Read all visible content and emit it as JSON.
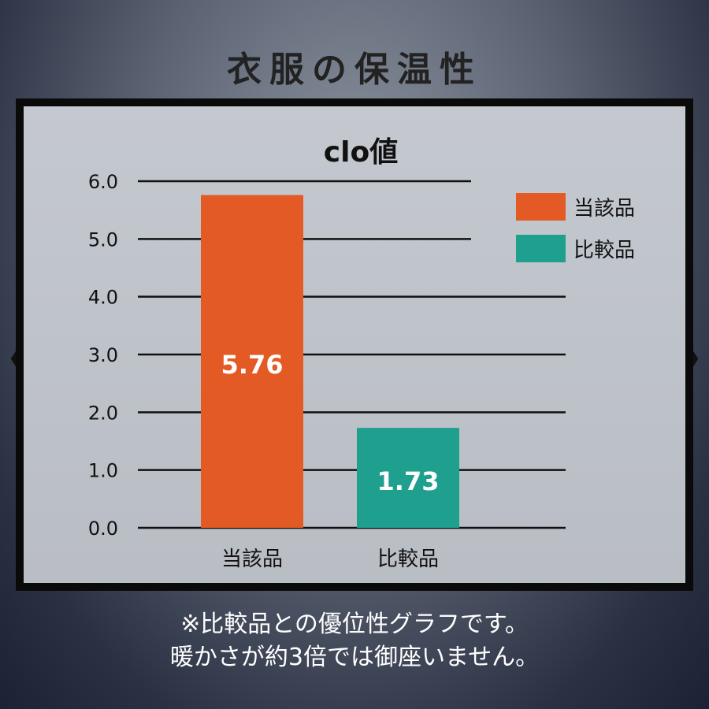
{
  "page_title": "衣服の保温性",
  "note_lines": [
    "※比較品との優位性グラフです。",
    "暖かさが約3倍では御座いません。"
  ],
  "nav": {
    "prev": "❮",
    "next": "❯"
  },
  "chart_data": {
    "type": "bar",
    "title": "clo値",
    "categories": [
      "当該品",
      "比較品"
    ],
    "values": [
      5.76,
      1.73
    ],
    "data_labels": [
      "5.76",
      "1.73"
    ],
    "colors": [
      "#e35a24",
      "#1fa08f"
    ],
    "ylim": [
      0,
      6
    ],
    "yticks": [
      "0.0",
      "1.0",
      "2.0",
      "3.0",
      "4.0",
      "5.0",
      "6.0"
    ],
    "grid": true,
    "legend": {
      "position": "top-right",
      "entries": [
        "当該品",
        "比較品"
      ]
    }
  }
}
